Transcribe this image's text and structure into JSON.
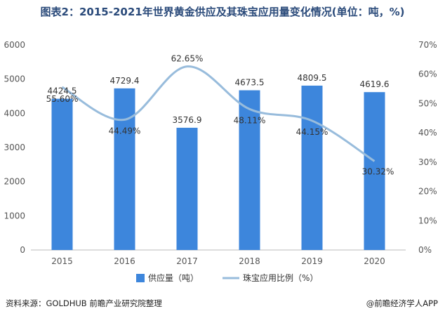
{
  "chart_data": {
    "type": "bar+line",
    "title": "图表2：2015-2021年世界黄金供应及其珠宝应用量变化情况(单位：吨，%)",
    "categories": [
      "2015",
      "2016",
      "2017",
      "2018",
      "2019",
      "2020"
    ],
    "series": [
      {
        "name": "供应量（吨）",
        "type": "bar",
        "axis": "left",
        "values": [
          4424.5,
          4729.4,
          3576.9,
          4673.5,
          4809.5,
          4619.6
        ],
        "labels": [
          "4424.5",
          "4729.4",
          "3576.9",
          "4673.5",
          "4809.5",
          "4619.6"
        ]
      },
      {
        "name": "珠宝应用比例（%）",
        "type": "line",
        "axis": "right",
        "values": [
          55.6,
          44.49,
          62.65,
          48.11,
          44.15,
          30.32
        ],
        "labels": [
          "55.60%",
          "44.49%",
          "62.65%",
          "48.11%",
          "44.15%",
          "30.32%"
        ]
      }
    ],
    "y_left": {
      "min": 0,
      "max": 6000,
      "ticks": [
        0,
        1000,
        2000,
        3000,
        4000,
        5000,
        6000
      ],
      "tick_labels": [
        "0",
        "1000",
        "2000",
        "3000",
        "4000",
        "5000",
        "6000"
      ]
    },
    "y_right": {
      "min": 0,
      "max": 70,
      "ticks": [
        0,
        10,
        20,
        30,
        40,
        50,
        60,
        70
      ],
      "tick_labels": [
        "0%",
        "10%",
        "20%",
        "30%",
        "40%",
        "50%",
        "60%",
        "70%"
      ]
    },
    "legend_position": "bottom-center",
    "colors": {
      "bar": "#3d86dc",
      "line": "#98bcdc",
      "axis": "#bbbbbb"
    }
  },
  "footer": {
    "source": "资料来源：GOLDHUB 前瞻产业研究院整理",
    "brand": "@前瞻经济学人APP"
  }
}
